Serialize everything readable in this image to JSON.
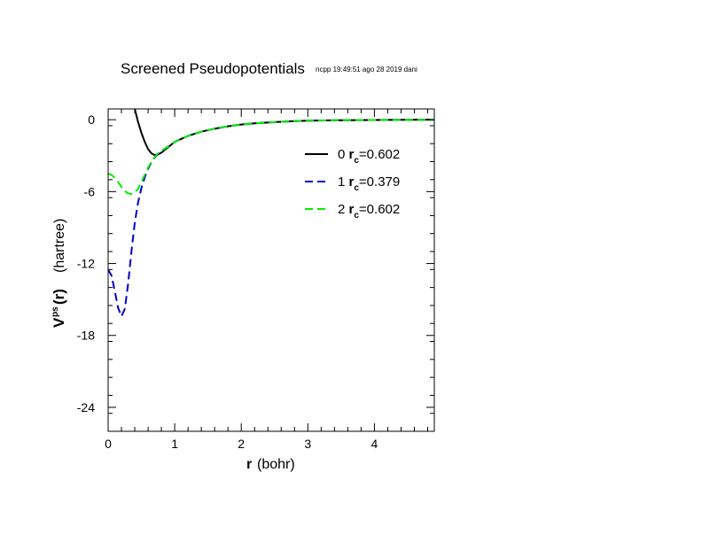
{
  "title": "Screened Pseudopotentials",
  "stamp": "ncpp 19:49:51 ago 28 2019 dani",
  "chart_data": {
    "type": "line",
    "xlabel_bold": "r",
    "xlabel_rest": "(bohr)",
    "ylabel_main": "V",
    "ylabel_sup": "ps",
    "ylabel_arg": "(r)",
    "ylabel_unit": "(hartree)",
    "xlim": [
      0,
      4.9
    ],
    "ylim": [
      -26,
      0.9
    ],
    "xticks": [
      0,
      1,
      2,
      3,
      4
    ],
    "yticks": [
      0,
      -6,
      -12,
      -18,
      -24
    ],
    "grid": false,
    "legend_position": "top-right",
    "series": [
      {
        "name": "0",
        "rc_label": "r",
        "rc_sub": "c",
        "rc_value": "=0.602",
        "color": "#000000",
        "dash": "solid",
        "x": [
          0.4,
          0.45,
          0.5,
          0.55,
          0.6,
          0.65,
          0.7,
          0.75,
          0.8,
          0.9,
          1.0,
          1.2,
          1.4,
          1.6,
          1.8,
          2.0,
          2.2,
          2.5,
          2.8,
          3.0,
          3.5,
          4.0,
          4.5,
          4.9
        ],
        "y": [
          0.9,
          -0.2,
          -1.1,
          -1.85,
          -2.45,
          -2.8,
          -2.95,
          -2.9,
          -2.75,
          -2.3,
          -1.85,
          -1.35,
          -1.0,
          -0.75,
          -0.55,
          -0.4,
          -0.3,
          -0.2,
          -0.12,
          -0.08,
          -0.04,
          -0.02,
          -0.01,
          0.0
        ]
      },
      {
        "name": "1",
        "rc_label": "r",
        "rc_sub": "c",
        "rc_value": "=0.379",
        "color": "#0000cc",
        "dash": "dashed",
        "x": [
          0.0,
          0.05,
          0.1,
          0.15,
          0.2,
          0.25,
          0.3,
          0.35,
          0.4,
          0.45,
          0.5,
          0.55,
          0.6,
          0.65,
          0.7,
          0.75,
          0.8,
          0.9,
          1.0,
          1.2,
          1.4,
          1.6,
          1.8,
          2.0,
          2.2,
          2.5,
          2.8,
          3.0,
          3.5,
          4.0,
          4.5,
          4.9
        ],
        "y": [
          -12.5,
          -13.0,
          -14.3,
          -15.7,
          -16.4,
          -15.8,
          -13.7,
          -11.0,
          -8.6,
          -6.9,
          -5.7,
          -4.8,
          -4.1,
          -3.55,
          -3.15,
          -2.85,
          -2.6,
          -2.25,
          -1.85,
          -1.35,
          -1.0,
          -0.75,
          -0.55,
          -0.4,
          -0.3,
          -0.2,
          -0.12,
          -0.08,
          -0.04,
          -0.02,
          -0.01,
          0.0
        ]
      },
      {
        "name": "2",
        "rc_label": "r",
        "rc_sub": "c",
        "rc_value": "=0.602",
        "color": "#00ee00",
        "dash": "dashed",
        "x": [
          0.0,
          0.05,
          0.1,
          0.15,
          0.2,
          0.25,
          0.3,
          0.35,
          0.4,
          0.45,
          0.5,
          0.55,
          0.6,
          0.65,
          0.7,
          0.75,
          0.8,
          0.9,
          1.0,
          1.2,
          1.4,
          1.6,
          1.8,
          2.0,
          2.2,
          2.5,
          2.8,
          3.0,
          3.5,
          4.0,
          4.5,
          4.9
        ],
        "y": [
          -4.5,
          -4.6,
          -4.85,
          -5.2,
          -5.6,
          -5.95,
          -6.15,
          -6.2,
          -6.1,
          -5.75,
          -5.2,
          -4.6,
          -4.0,
          -3.5,
          -3.1,
          -2.8,
          -2.6,
          -2.25,
          -1.85,
          -1.35,
          -1.0,
          -0.75,
          -0.55,
          -0.4,
          -0.3,
          -0.2,
          -0.12,
          -0.08,
          -0.04,
          -0.02,
          -0.01,
          0.0
        ]
      }
    ]
  }
}
